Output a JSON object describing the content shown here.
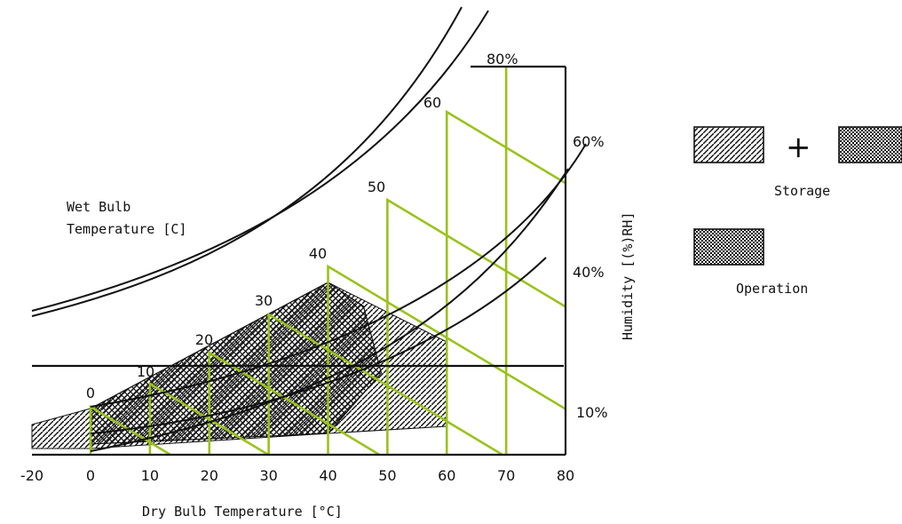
{
  "chart_data": {
    "type": "psychrometric",
    "xlabel": "Dry Bulb Temperature [°C]",
    "ylabel": "Humidity [(%)RH]",
    "wet_bulb_title_line1": "Wet Bulb",
    "wet_bulb_title_line2": "Temperature [C]",
    "x_ticks": [
      "-20",
      "0",
      "10",
      "20",
      "30",
      "40",
      "50",
      "60",
      "70",
      "80"
    ],
    "x_tick_values": [
      -20,
      0,
      10,
      20,
      30,
      40,
      50,
      60,
      70,
      80
    ],
    "xlim": [
      -20,
      80
    ],
    "wet_bulb_values": [
      0,
      10,
      20,
      30,
      40,
      50,
      60
    ],
    "wet_bulb_labels": [
      "0",
      "10",
      "20",
      "30",
      "40",
      "50",
      "60"
    ],
    "rh_labels": [
      "10%",
      "40%",
      "60%",
      "80%"
    ],
    "storage_region": {
      "dry_bulb_min": -20,
      "dry_bulb_max": 60,
      "label": "Storage",
      "composition": "hatched + crosshatched"
    },
    "operation_region": {
      "dry_bulb_min": 0,
      "dry_bulb_max": 40,
      "label": "Operation"
    },
    "legend": {
      "storage_label": "Storage",
      "operation_label": "Operation",
      "plus_symbol": "+"
    },
    "colors": {
      "wet_bulb_lines": "#99c21c",
      "curves": "#111111",
      "hatch": "#111111"
    },
    "grid": false
  }
}
